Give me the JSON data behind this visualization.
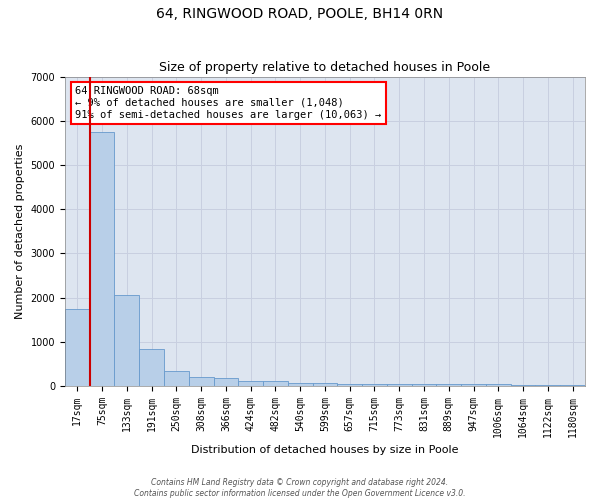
{
  "title": "64, RINGWOOD ROAD, POOLE, BH14 0RN",
  "subtitle": "Size of property relative to detached houses in Poole",
  "xlabel": "Distribution of detached houses by size in Poole",
  "ylabel": "Number of detached properties",
  "categories": [
    "17sqm",
    "75sqm",
    "133sqm",
    "191sqm",
    "250sqm",
    "308sqm",
    "366sqm",
    "424sqm",
    "482sqm",
    "540sqm",
    "599sqm",
    "657sqm",
    "715sqm",
    "773sqm",
    "831sqm",
    "889sqm",
    "947sqm",
    "1006sqm",
    "1064sqm",
    "1122sqm",
    "1180sqm"
  ],
  "values": [
    1750,
    5750,
    2050,
    830,
    340,
    210,
    170,
    110,
    100,
    60,
    55,
    50,
    45,
    40,
    38,
    35,
    33,
    31,
    29,
    27,
    25
  ],
  "bar_color": "#b8cfe8",
  "bar_edge_color": "#6699cc",
  "grid_color": "#c8cfe0",
  "background_color": "#dde5f0",
  "annotation_line1": "64 RINGWOOD ROAD: 68sqm",
  "annotation_line2": "← 9% of detached houses are smaller (1,048)",
  "annotation_line3": "91% of semi-detached houses are larger (10,063) →",
  "marker_line_color": "#cc0000",
  "ylim": [
    0,
    7000
  ],
  "yticks": [
    0,
    1000,
    2000,
    3000,
    4000,
    5000,
    6000,
    7000
  ],
  "footnote": "Contains HM Land Registry data © Crown copyright and database right 2024.\nContains public sector information licensed under the Open Government Licence v3.0.",
  "title_fontsize": 10,
  "subtitle_fontsize": 9,
  "xlabel_fontsize": 8,
  "ylabel_fontsize": 8,
  "tick_fontsize": 7,
  "annot_fontsize": 7.5
}
